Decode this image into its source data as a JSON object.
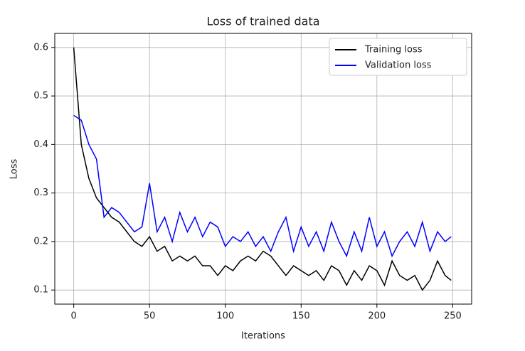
{
  "chart_data": {
    "type": "line",
    "title": "Loss of trained data",
    "xlabel": "Iterations",
    "ylabel": "Loss",
    "x": [
      0,
      5,
      10,
      15,
      20,
      25,
      30,
      35,
      40,
      45,
      50,
      55,
      60,
      65,
      70,
      75,
      80,
      85,
      90,
      95,
      100,
      105,
      110,
      115,
      120,
      125,
      130,
      135,
      140,
      145,
      150,
      155,
      160,
      165,
      170,
      175,
      180,
      185,
      190,
      195,
      200,
      205,
      210,
      215,
      220,
      225,
      230,
      235,
      240,
      245,
      249
    ],
    "series": [
      {
        "name": "Training loss",
        "color": "#000000",
        "values": [
          0.6,
          0.4,
          0.33,
          0.29,
          0.27,
          0.25,
          0.24,
          0.22,
          0.2,
          0.19,
          0.21,
          0.18,
          0.19,
          0.16,
          0.17,
          0.16,
          0.17,
          0.15,
          0.15,
          0.13,
          0.15,
          0.14,
          0.16,
          0.17,
          0.16,
          0.18,
          0.17,
          0.15,
          0.13,
          0.15,
          0.14,
          0.13,
          0.14,
          0.12,
          0.15,
          0.14,
          0.11,
          0.14,
          0.12,
          0.15,
          0.14,
          0.11,
          0.16,
          0.13,
          0.12,
          0.13,
          0.1,
          0.12,
          0.16,
          0.13,
          0.12
        ]
      },
      {
        "name": "Validation loss",
        "color": "#0000ff",
        "values": [
          0.46,
          0.45,
          0.4,
          0.37,
          0.25,
          0.27,
          0.26,
          0.24,
          0.22,
          0.23,
          0.32,
          0.22,
          0.25,
          0.2,
          0.26,
          0.22,
          0.25,
          0.21,
          0.24,
          0.23,
          0.19,
          0.21,
          0.2,
          0.22,
          0.19,
          0.21,
          0.18,
          0.22,
          0.25,
          0.18,
          0.23,
          0.19,
          0.22,
          0.18,
          0.24,
          0.2,
          0.17,
          0.22,
          0.18,
          0.25,
          0.19,
          0.22,
          0.17,
          0.2,
          0.22,
          0.19,
          0.24,
          0.18,
          0.22,
          0.2,
          0.21
        ]
      }
    ],
    "xlim": [
      -12.5,
      262.5
    ],
    "xticks": [
      0,
      50,
      100,
      150,
      200,
      250
    ],
    "ylim": [
      0.071,
      0.629
    ],
    "yticks": [
      0.1,
      0.2,
      0.3,
      0.4,
      0.5,
      0.6
    ],
    "grid": true,
    "legend": "upper right"
  }
}
